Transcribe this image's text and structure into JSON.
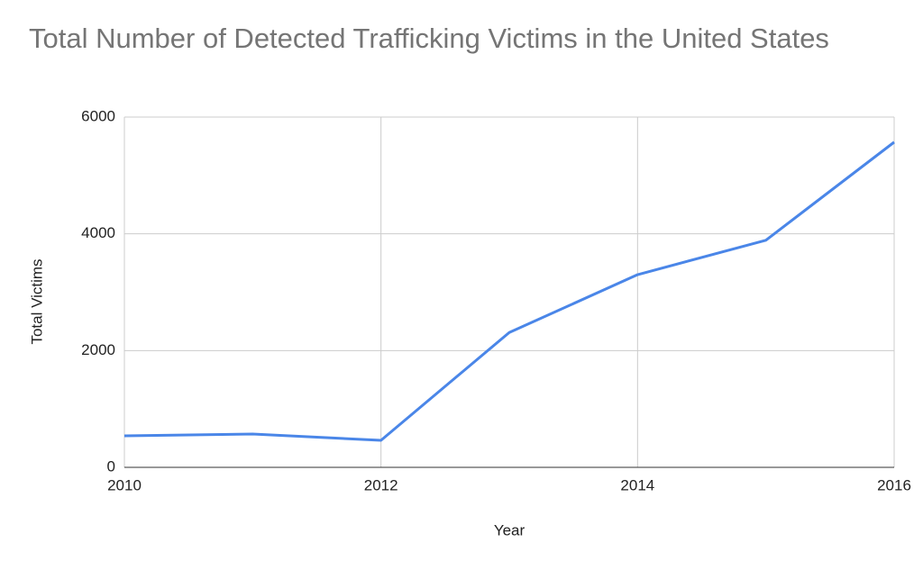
{
  "chart_data": {
    "type": "line",
    "title": "Total Number of Detected Trafficking Victims in the United States",
    "x_label": "Year",
    "y_label": "Total Victims",
    "x": [
      2010,
      2011,
      2012,
      2013,
      2014,
      2015,
      2016
    ],
    "series": [
      {
        "name": "Total Victims",
        "color": "#4a86e8",
        "values": [
          540,
          570,
          463,
          2310,
          3300,
          3890,
          5570
        ]
      }
    ],
    "xlim": [
      2010,
      2016
    ],
    "xticks": [
      2010,
      2012,
      2014,
      2016
    ],
    "ylim": [
      0,
      6000
    ],
    "yticks": [
      0,
      2000,
      4000,
      6000
    ],
    "grid": true
  }
}
